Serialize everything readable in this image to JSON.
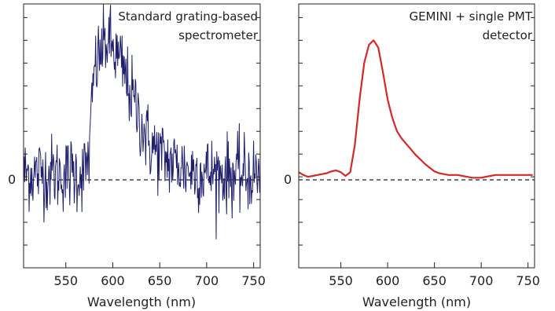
{
  "chart_data": [
    {
      "type": "line",
      "title": "Standard grating-based spectrometer",
      "title_lines": [
        "Standard grating-based",
        "spectrometer"
      ],
      "xlabel": "Wavelength (nm)",
      "ylabel": "",
      "xlim": [
        505,
        757
      ],
      "ylim": [
        -1.0,
        1.9
      ],
      "x_ticks": [
        550,
        600,
        650,
        700,
        750
      ],
      "y_ticks_labeled": [
        {
          "value": 0,
          "label": "0"
        }
      ],
      "zero_line": true,
      "grid": false,
      "series": [
        {
          "color": "#1f1f6e",
          "x": [
            505,
            510,
            515,
            520,
            525,
            530,
            535,
            540,
            545,
            550,
            555,
            560,
            565,
            570,
            575,
            580,
            585,
            590,
            595,
            600,
            605,
            610,
            615,
            620,
            625,
            630,
            635,
            640,
            645,
            650,
            655,
            660,
            665,
            670,
            675,
            680,
            685,
            690,
            695,
            700,
            705,
            710,
            715,
            720,
            725,
            730,
            735,
            740,
            745,
            750,
            755
          ],
          "y": [
            0.02,
            0.05,
            0.03,
            0.04,
            0.06,
            0.02,
            0.05,
            0.03,
            0.04,
            0.02,
            0.05,
            0.03,
            0.04,
            0.05,
            0.25,
            1.15,
            1.3,
            1.45,
            1.5,
            1.4,
            1.3,
            1.2,
            1.05,
            0.9,
            0.75,
            0.6,
            0.45,
            0.35,
            0.3,
            0.25,
            0.2,
            0.18,
            0.15,
            0.13,
            0.1,
            0.08,
            0.07,
            0.06,
            0.05,
            0.05,
            0.04,
            0.04,
            0.03,
            0.03,
            0.03,
            0.02,
            0.02,
            0.02,
            0.02,
            0.02,
            0.02
          ],
          "noise_amplitude": 0.38
        }
      ]
    },
    {
      "type": "line",
      "title": "GEMINI + single PMT detector",
      "title_lines": [
        "GEMINI + single PMT",
        "detector"
      ],
      "xlabel": "Wavelength (nm)",
      "ylabel": "",
      "xlim": [
        505,
        757
      ],
      "ylim": [
        -1.0,
        1.9
      ],
      "x_ticks": [
        550,
        600,
        650,
        700,
        750
      ],
      "y_ticks_labeled": [
        {
          "value": 0,
          "label": "0"
        }
      ],
      "zero_line": true,
      "grid": false,
      "series": [
        {
          "color": "#d42a27",
          "x": [
            505,
            510,
            515,
            520,
            525,
            530,
            535,
            540,
            545,
            550,
            555,
            560,
            565,
            570,
            575,
            580,
            585,
            590,
            595,
            600,
            605,
            610,
            615,
            620,
            625,
            630,
            635,
            640,
            645,
            650,
            655,
            660,
            665,
            670,
            675,
            680,
            685,
            690,
            695,
            700,
            705,
            710,
            715,
            720,
            725,
            730,
            735,
            740,
            745,
            750,
            755
          ],
          "y": [
            0.05,
            0.02,
            0.0,
            0.01,
            0.02,
            0.03,
            0.04,
            0.06,
            0.07,
            0.05,
            0.01,
            0.05,
            0.35,
            0.85,
            1.25,
            1.45,
            1.5,
            1.42,
            1.15,
            0.85,
            0.65,
            0.5,
            0.42,
            0.36,
            0.3,
            0.24,
            0.19,
            0.14,
            0.1,
            0.06,
            0.04,
            0.03,
            0.02,
            0.02,
            0.02,
            0.01,
            0.0,
            -0.01,
            -0.01,
            -0.01,
            0.0,
            0.01,
            0.02,
            0.02,
            0.02,
            0.02,
            0.02,
            0.02,
            0.02,
            0.02,
            0.02
          ]
        }
      ]
    }
  ]
}
